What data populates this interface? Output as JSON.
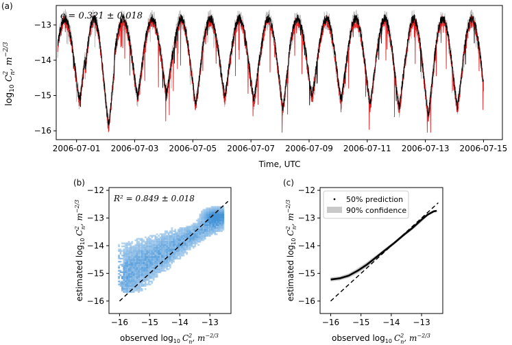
{
  "figure": {
    "panel_labels": [
      "(a)",
      "(b)",
      "(c)"
    ]
  },
  "chart_data": [
    {
      "id": "a",
      "type": "line",
      "annotation": "ϵ = 0.321 ± 0.018",
      "xlabel": "Time, UTC",
      "ylabel": "log10 Cn², m^-2/3",
      "ylabel_parts": {
        "main": "log",
        "sub": "10",
        "var": "C",
        "var_sub": "n",
        "var_sup": "2",
        "unit": ", m",
        "unit_sup": "−2/3"
      },
      "x_ticks": [
        "2006-07-01",
        "2006-07-03",
        "2006-07-05",
        "2006-07-07",
        "2006-07-09",
        "2006-07-11",
        "2006-07-13",
        "2006-07-15"
      ],
      "x_tick_days": [
        1,
        3,
        5,
        7,
        9,
        11,
        13,
        15
      ],
      "xlim_days": [
        0.3,
        15.65
      ],
      "y_ticks": [
        "−13",
        "−14",
        "−15",
        "−16"
      ],
      "y_tick_values": [
        -13,
        -14,
        -15,
        -16
      ],
      "ylim": [
        -16.25,
        -12.45
      ],
      "series": [
        {
          "color": "#e41a1c"
        },
        {
          "color": "#000000"
        },
        {
          "color": "#bdbdbd"
        }
      ],
      "series_note": "daily cycles: high ≈ −12.8 during day, minima ≈ −15 to −16 at night",
      "daily_high": -12.9,
      "daily_low_by_day": [
        -15.2,
        -15.9,
        -15.1,
        -15.0,
        -15.3,
        -15.1,
        -15.2,
        -15.4,
        -15.1,
        -15.2,
        -15.3,
        -15.4,
        -15.6,
        -15.4,
        -15.3
      ]
    },
    {
      "id": "b",
      "type": "heatmap",
      "annotation": "R² = 0.849 ± 0.018",
      "xlabel": "observed  log10 Cn², m^-2/3",
      "ylabel": "estimated  log10 Cn², m^-2/3",
      "x_ticks": [
        "−16",
        "−15",
        "−14",
        "−13"
      ],
      "x_tick_values": [
        -16,
        -15,
        -14,
        -13
      ],
      "y_ticks": [
        "−12",
        "−13",
        "−14",
        "−15",
        "−16"
      ],
      "y_tick_values": [
        -12,
        -13,
        -14,
        -15,
        -16
      ],
      "xlim": [
        -16.35,
        -12.3
      ],
      "ylim": [
        -16.45,
        -11.9
      ],
      "color": "#3d8fd6",
      "reference_line": {
        "from": [
          -16,
          -16
        ],
        "to": [
          -12.4,
          -12.4
        ],
        "style": "dashed"
      }
    },
    {
      "id": "c",
      "type": "line",
      "xlabel": "observed  log10 Cn², m^-2/3",
      "ylabel": "estimated  log10 Cn², m^-2/3",
      "x_ticks": [
        "−16",
        "−15",
        "−14",
        "−13"
      ],
      "x_tick_values": [
        -16,
        -15,
        -14,
        -13
      ],
      "y_ticks": [
        "−12",
        "−13",
        "−14",
        "−15",
        "−16"
      ],
      "y_tick_values": [
        -12,
        -13,
        -14,
        -15,
        -16
      ],
      "xlim": [
        -16.35,
        -12.3
      ],
      "ylim": [
        -16.45,
        -11.9
      ],
      "legend": {
        "position": "top-left",
        "entries": [
          "50% prediction",
          "90% confidence"
        ]
      },
      "prediction": {
        "x": [
          -16.0,
          -15.7,
          -15.4,
          -15.1,
          -14.8,
          -14.5,
          -14.2,
          -13.9,
          -13.6,
          -13.3,
          -13.0,
          -12.8,
          -12.6,
          -12.5
        ],
        "y": [
          -15.22,
          -15.18,
          -15.08,
          -14.9,
          -14.68,
          -14.42,
          -14.16,
          -13.9,
          -13.62,
          -13.36,
          -13.06,
          -12.88,
          -12.76,
          -12.74
        ]
      },
      "confidence_halfwidth": [
        0.07,
        0.07,
        0.08,
        0.09,
        0.09,
        0.08,
        0.07,
        0.06,
        0.06,
        0.07,
        0.08,
        0.05,
        0.04,
        0.03
      ],
      "reference_line": {
        "from": [
          -16,
          -16
        ],
        "to": [
          -12.45,
          -12.45
        ],
        "style": "dashed"
      }
    }
  ]
}
